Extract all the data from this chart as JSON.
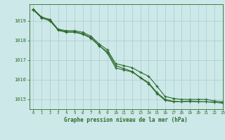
{
  "title": "Graphe pression niveau de la mer (hPa)",
  "background_color": "#cde8e8",
  "grid_color": "#aacccc",
  "line_color": "#2d6a2d",
  "xlim": [
    -0.5,
    23
  ],
  "ylim": [
    1014.5,
    1019.85
  ],
  "yticks": [
    1015,
    1016,
    1017,
    1018,
    1019
  ],
  "ytick_labels": [
    "1015",
    "1016",
    "1017",
    "1018",
    "1019"
  ],
  "xticks": [
    0,
    1,
    2,
    3,
    4,
    5,
    6,
    7,
    8,
    9,
    10,
    11,
    12,
    13,
    14,
    15,
    16,
    17,
    18,
    19,
    20,
    21,
    22,
    23
  ],
  "s1_x": [
    0,
    1,
    2,
    3,
    4,
    5,
    6,
    7,
    8,
    9,
    10,
    11,
    12,
    13,
    14,
    15,
    16,
    17,
    18,
    19,
    20,
    21,
    22,
    23
  ],
  "s1_y": [
    1019.55,
    1019.15,
    1019.0,
    1018.55,
    1018.45,
    1018.45,
    1018.35,
    1018.15,
    1017.75,
    1017.35,
    1016.6,
    1016.5,
    1016.4,
    1016.1,
    1015.8,
    1015.3,
    1014.95,
    1014.88,
    1014.88,
    1014.92,
    1014.88,
    1014.88,
    1014.85,
    1014.82
  ],
  "s2_x": [
    0,
    1,
    2,
    3,
    4,
    5,
    6,
    7,
    8,
    9,
    10,
    11,
    12,
    13,
    14,
    15,
    16,
    17,
    18,
    19,
    20,
    21,
    22,
    23
  ],
  "s2_y": [
    1019.6,
    1019.2,
    1019.05,
    1018.52,
    1018.42,
    1018.42,
    1018.32,
    1018.12,
    1017.72,
    1017.42,
    1016.72,
    1016.57,
    1016.42,
    1016.12,
    1015.85,
    1015.35,
    1015.0,
    1014.9,
    1014.88,
    1014.9,
    1014.88,
    1014.88,
    1014.85,
    1014.82
  ],
  "s3_x": [
    0,
    1,
    2,
    3,
    4,
    5,
    6,
    7,
    8,
    9,
    10,
    11,
    12,
    13,
    14,
    15,
    16,
    17,
    18,
    19,
    20,
    21,
    22,
    23
  ],
  "s3_y": [
    1019.58,
    1019.18,
    1019.08,
    1018.58,
    1018.5,
    1018.5,
    1018.42,
    1018.22,
    1017.82,
    1017.52,
    1016.82,
    1016.72,
    1016.62,
    1016.38,
    1016.18,
    1015.68,
    1015.15,
    1015.05,
    1015.0,
    1015.0,
    1015.0,
    1015.0,
    1014.92,
    1014.88
  ]
}
